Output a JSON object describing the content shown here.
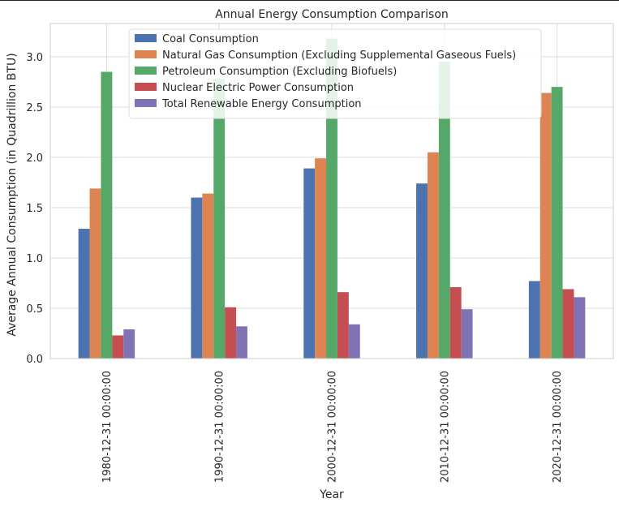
{
  "chart_data": {
    "type": "bar",
    "title": "Annual Energy Consumption Comparison",
    "xlabel": "Year",
    "ylabel": "Average Annual Consumption (in Quadrillion BTU)",
    "categories": [
      "1980-12-31 00:00:00",
      "1990-12-31 00:00:00",
      "2000-12-31 00:00:00",
      "2010-12-31 00:00:00",
      "2020-12-31 00:00:00"
    ],
    "ylim": [
      0,
      3.33
    ],
    "yticks": [
      "0.0",
      "0.5",
      "1.0",
      "1.5",
      "2.0",
      "2.5",
      "3.0"
    ],
    "grid": true,
    "legend_position": "upper-left",
    "series": [
      {
        "name": "Coal Consumption",
        "color": "#4c72b0",
        "values": [
          1.29,
          1.6,
          1.89,
          1.74,
          0.77
        ]
      },
      {
        "name": "Natural Gas Consumption (Excluding Supplemental Gaseous Fuels)",
        "color": "#dd8452",
        "values": [
          1.69,
          1.64,
          1.99,
          2.05,
          2.64
        ]
      },
      {
        "name": "Petroleum Consumption (Excluding Biofuels)",
        "color": "#55a868",
        "values": [
          2.85,
          2.78,
          3.18,
          2.95,
          2.7
        ]
      },
      {
        "name": "Nuclear Electric Power Consumption",
        "color": "#c44e52",
        "values": [
          0.23,
          0.51,
          0.66,
          0.71,
          0.69
        ]
      },
      {
        "name": "Total Renewable Energy Consumption",
        "color": "#8172b3",
        "values": [
          0.29,
          0.32,
          0.34,
          0.49,
          0.61
        ]
      }
    ]
  }
}
